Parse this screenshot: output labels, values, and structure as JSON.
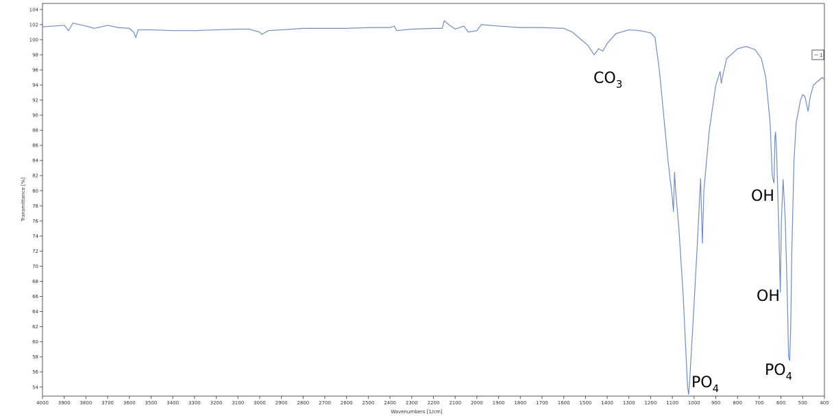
{
  "chart_data": {
    "type": "line",
    "x_label": "Wavenumbers [1/cm]",
    "y_label": "Transmittance [%]",
    "legend": "1",
    "annotations": [
      {
        "text": "CO",
        "sub": "3"
      },
      {
        "text": "OH"
      },
      {
        "text": "OH"
      },
      {
        "text": "PO",
        "sub": "4"
      },
      {
        "text": "PO",
        "sub": "4"
      }
    ],
    "xlim": [
      4000,
      400
    ],
    "ylim": [
      52.8,
      104.8
    ],
    "xticks": [
      4000,
      3900,
      3800,
      3700,
      3600,
      3500,
      3400,
      3300,
      3200,
      3100,
      3000,
      2900,
      2800,
      2700,
      2600,
      2500,
      2400,
      2300,
      2200,
      2100,
      2000,
      1900,
      1800,
      1700,
      1600,
      1500,
      1400,
      1300,
      1200,
      1100,
      1000,
      900,
      800,
      700,
      600,
      500,
      400
    ],
    "yticks": [
      54,
      56,
      58,
      60,
      62,
      64,
      66,
      68,
      70,
      72,
      74,
      76,
      78,
      80,
      82,
      84,
      86,
      88,
      90,
      92,
      94,
      96,
      98,
      100,
      102,
      104
    ],
    "x": [
      4000,
      3950,
      3900,
      3880,
      3860,
      3800,
      3760,
      3700,
      3650,
      3600,
      3580,
      3570,
      3560,
      3500,
      3400,
      3300,
      3200,
      3100,
      3050,
      3000,
      2990,
      2960,
      2900,
      2800,
      2700,
      2600,
      2500,
      2400,
      2380,
      2370,
      2300,
      2200,
      2160,
      2150,
      2130,
      2100,
      2060,
      2040,
      2000,
      1980,
      1900,
      1800,
      1700,
      1600,
      1560,
      1520,
      1490,
      1460,
      1440,
      1420,
      1400,
      1360,
      1300,
      1250,
      1200,
      1180,
      1160,
      1140,
      1120,
      1100,
      1095,
      1090,
      1085,
      1070,
      1050,
      1040,
      1030,
      1025,
      1020,
      1000,
      985,
      970,
      962,
      955,
      930,
      900,
      880,
      875,
      870,
      850,
      800,
      760,
      720,
      690,
      670,
      650,
      640,
      632,
      628,
      625,
      620,
      610,
      603,
      598,
      590,
      580,
      570,
      565,
      560,
      555,
      550,
      540,
      530,
      510,
      500,
      490,
      475,
      465,
      450,
      430,
      410,
      400
    ],
    "series": [
      {
        "name": "1",
        "color": "#6f8cc4",
        "values": [
          101.7,
          101.8,
          101.9,
          101.2,
          102.2,
          101.8,
          101.5,
          101.9,
          101.6,
          101.5,
          101.0,
          100.3,
          101.3,
          101.3,
          101.2,
          101.2,
          101.3,
          101.4,
          101.4,
          101.0,
          100.7,
          101.2,
          101.3,
          101.5,
          101.5,
          101.5,
          101.6,
          101.6,
          101.8,
          101.2,
          101.4,
          101.5,
          101.5,
          102.5,
          102.0,
          101.4,
          101.8,
          101.0,
          101.2,
          102.0,
          101.8,
          101.6,
          101.6,
          101.5,
          101.0,
          100.0,
          99.3,
          98.0,
          98.8,
          98.5,
          99.5,
          100.8,
          101.3,
          101.2,
          100.9,
          100.3,
          96,
          90,
          84,
          79,
          77.2,
          82.5,
          80,
          75,
          66,
          60,
          54,
          53,
          55,
          65,
          73,
          81.6,
          73,
          80,
          88,
          94,
          95.8,
          94.2,
          95,
          97.5,
          98.8,
          99.1,
          98.7,
          97.5,
          95,
          89,
          82,
          81,
          87,
          87.8,
          85,
          75,
          66.5,
          76,
          81.5,
          76,
          65,
          58,
          57.5,
          62,
          72,
          84,
          89,
          92,
          92.7,
          92.5,
          90.5,
          92.5,
          94,
          94.5,
          95,
          94.7
        ]
      }
    ]
  }
}
